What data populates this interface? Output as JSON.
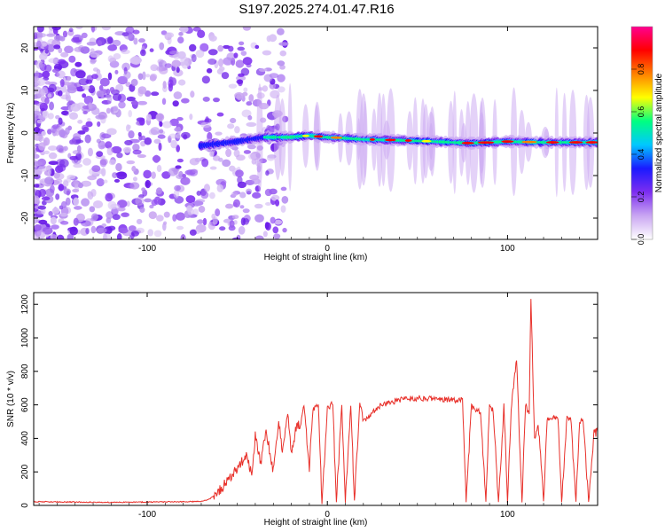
{
  "title": "S197.2025.274.01.47.R16",
  "chart_data": [
    {
      "type": "heatmap",
      "title": "S197.2025.274.01.47.R16",
      "xlabel": "Height of straight line (km)",
      "ylabel": "Frequency (Hz)",
      "xlim": [
        -163,
        150
      ],
      "ylim": [
        -25,
        25
      ],
      "xticks": [
        -100,
        0,
        100
      ],
      "yticks": [
        -20,
        -10,
        0,
        10,
        20
      ],
      "colorbar": {
        "label": "Normalized spectral amplitude",
        "range": [
          0,
          1
        ],
        "ticks": [
          "0.0",
          "0.2",
          "0.4",
          "0.6",
          "0.8"
        ],
        "colors": [
          "#ffffff",
          "#c9a6f2",
          "#7d2ef0",
          "#1a1aff",
          "#00c8ff",
          "#00ff80",
          "#ffff00",
          "#ff8000",
          "#ff0000",
          "#ff0090"
        ]
      },
      "ridge": {
        "x": [
          -70,
          -50,
          -35,
          -20,
          -10,
          0,
          10,
          20,
          40,
          60,
          80,
          100,
          120,
          150
        ],
        "freq": [
          -3,
          -2,
          -1,
          -1,
          -0.6,
          -1,
          -1.2,
          -1.5,
          -1.7,
          -2,
          -2.4,
          -2,
          -2.2,
          -2.2
        ]
      }
    },
    {
      "type": "line",
      "xlabel": "Height of straight line (km)",
      "ylabel": "SNR (10 * v/v)",
      "xlim": [
        -163,
        150
      ],
      "ylim": [
        0,
        1270
      ],
      "xticks": [
        -100,
        0,
        100
      ],
      "yticks": [
        0,
        200,
        400,
        600,
        800,
        1000,
        1200
      ],
      "color": "#e8302a",
      "series": [
        {
          "name": "SNR",
          "x": [
            -163,
            -140,
            -120,
            -100,
            -80,
            -70,
            -65,
            -60,
            -55,
            -50,
            -45,
            -42,
            -40,
            -37,
            -34,
            -30,
            -27,
            -25,
            -22,
            -20,
            -17,
            -15,
            -13,
            -10,
            -8,
            -5,
            -3,
            0,
            3,
            5,
            8,
            10,
            13,
            15,
            18,
            20,
            25,
            30,
            40,
            50,
            60,
            70,
            75,
            77,
            80,
            82,
            85,
            88,
            90,
            92,
            95,
            98,
            100,
            102,
            105,
            108,
            110,
            112,
            113,
            115,
            117,
            120,
            122,
            125,
            128,
            130,
            133,
            135,
            138,
            140,
            142,
            145,
            148,
            150
          ],
          "y": [
            22,
            20,
            18,
            20,
            22,
            24,
            40,
            90,
            150,
            220,
            300,
            180,
            420,
            250,
            450,
            200,
            520,
            300,
            560,
            320,
            480,
            480,
            600,
            220,
            570,
            600,
            10,
            580,
            610,
            20,
            600,
            20,
            610,
            30,
            620,
            500,
            550,
            600,
            630,
            640,
            635,
            630,
            630,
            20,
            600,
            560,
            560,
            20,
            600,
            560,
            20,
            600,
            15,
            580,
            880,
            20,
            600,
            540,
            1250,
            380,
            500,
            25,
            520,
            520,
            510,
            20,
            520,
            520,
            20,
            500,
            510,
            20,
            430,
            440
          ]
        }
      ]
    }
  ]
}
